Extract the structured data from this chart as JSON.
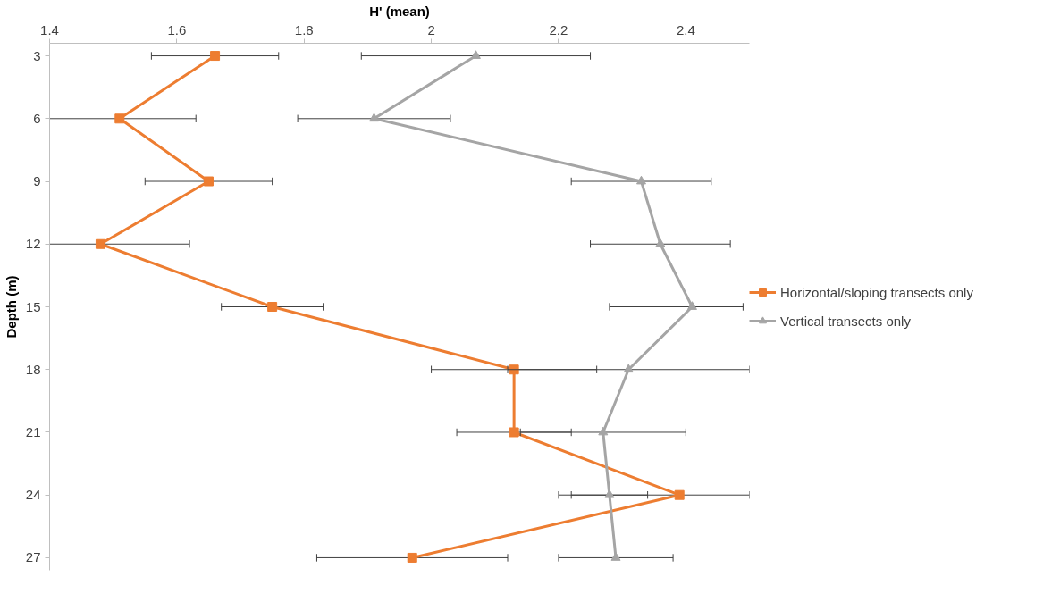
{
  "chart_data": {
    "type": "line",
    "orientation": "horizontal",
    "xlabel": "H' (mean)",
    "ylabel": "Depth (m)",
    "categories": [
      "3",
      "6",
      "9",
      "12",
      "15",
      "18",
      "21",
      "24",
      "27"
    ],
    "xlim": [
      1.4,
      2.5
    ],
    "xticks": [
      1.4,
      1.6,
      1.8,
      2,
      2.2,
      2.4
    ],
    "grid": false,
    "legend": "right",
    "line_style": "solid",
    "series": [
      {
        "name": "Horizontal/sloping transects only",
        "color": "#ed7d31",
        "marker": "square",
        "values": [
          1.66,
          1.51,
          1.65,
          1.48,
          1.75,
          2.13,
          2.13,
          2.39,
          1.97
        ],
        "errors": [
          0.1,
          [
            1.4,
            1.63
          ],
          0.1,
          [
            1.4,
            1.62
          ],
          0.08,
          0.13,
          0.09,
          [
            2.2,
            2.5
          ],
          0.15
        ]
      },
      {
        "name": "Vertical transects only",
        "color": "#a5a5a5",
        "marker": "triangle",
        "values": [
          2.07,
          1.91,
          2.33,
          2.36,
          2.41,
          2.31,
          2.27,
          2.28,
          2.29
        ],
        "errors": [
          0.18,
          0.12,
          0.11,
          0.11,
          [
            2.28,
            2.49
          ],
          [
            2.12,
            2.5
          ],
          0.13,
          0.06,
          0.09
        ]
      }
    ]
  }
}
